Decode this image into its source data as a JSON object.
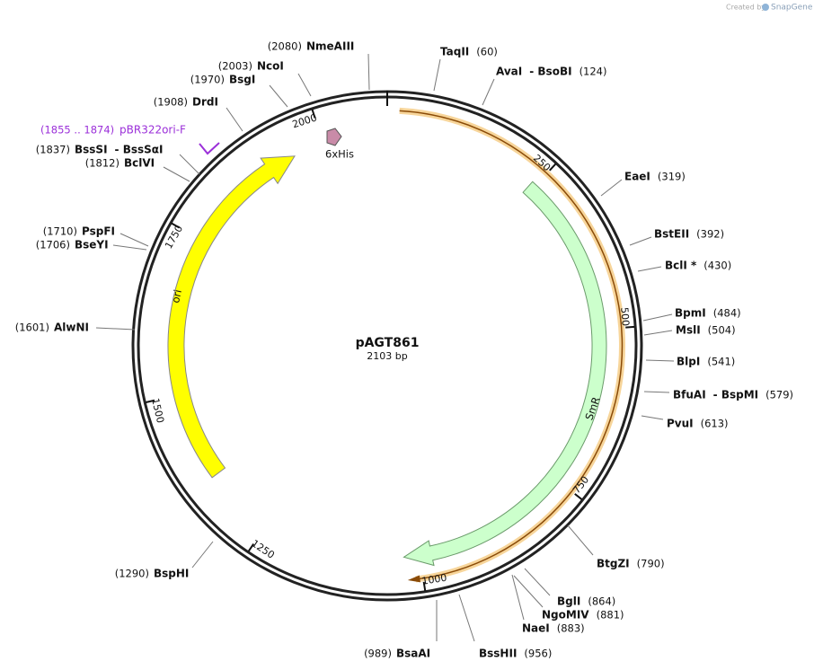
{
  "header": {
    "credit": "Created by",
    "brand": "SnapGene"
  },
  "map": {
    "name": "pAGT861",
    "length": "2103 bp"
  },
  "features": [
    {
      "label": "SmR"
    },
    {
      "label": "ori"
    },
    {
      "label": "6xHis"
    }
  ],
  "primer": {
    "range": "(1855 .. 1874)",
    "name": "pBR322ori-F"
  },
  "ruler": [
    "250",
    "500",
    "750",
    "1000",
    "1250",
    "1500",
    "1750",
    "2000"
  ],
  "sites": [
    {
      "name": "NmeAIII",
      "position": "(2080)"
    },
    {
      "name": "TaqII",
      "position": "(60)"
    },
    {
      "name": "AvaI",
      "alt": "- BsoBI",
      "position": "(124)"
    },
    {
      "name": "NcoI",
      "position": "(2003)"
    },
    {
      "name": "BsgI",
      "position": "(1970)"
    },
    {
      "name": "DrdI",
      "position": "(1908)"
    },
    {
      "name": "BssSI",
      "alt": "- BssSαI",
      "position": "(1837)"
    },
    {
      "name": "BclVI",
      "position": "(1812)"
    },
    {
      "name": "PspFI",
      "position": "(1710)"
    },
    {
      "name": "BseYI",
      "position": "(1706)"
    },
    {
      "name": "AlwNI",
      "position": "(1601)"
    },
    {
      "name": "BspHI",
      "position": "(1290)"
    },
    {
      "name": "BsaAI",
      "position": "(989)"
    },
    {
      "name": "BssHII",
      "position": "(956)"
    },
    {
      "name": "NaeI",
      "position": "(883)"
    },
    {
      "name": "NgoMIV",
      "position": "(881)"
    },
    {
      "name": "BglI",
      "position": "(864)"
    },
    {
      "name": "BtgZI",
      "position": "(790)"
    },
    {
      "name": "PvuI",
      "position": "(613)"
    },
    {
      "name": "BfuAI",
      "alt": "- BspMI",
      "position": "(579)"
    },
    {
      "name": "BlpI",
      "position": "(541)"
    },
    {
      "name": "MslI",
      "position": "(504)"
    },
    {
      "name": "BpmI",
      "position": "(484)"
    },
    {
      "name": "BclI *",
      "position": "(430)"
    },
    {
      "name": "BstEII",
      "position": "(392)"
    },
    {
      "name": "EaeI",
      "position": "(319)"
    }
  ]
}
